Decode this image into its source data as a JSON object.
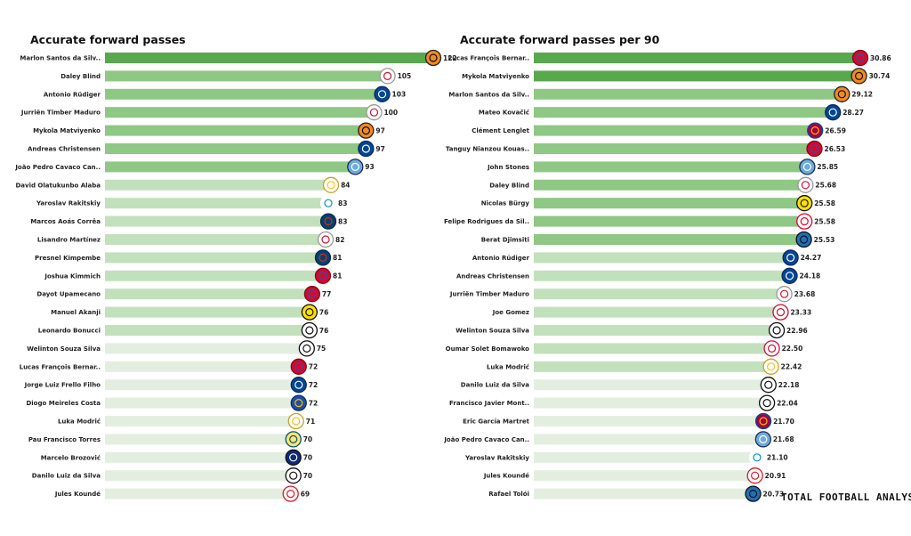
{
  "colors": {
    "bar_dark": "#58a84e",
    "bar_mid": "#8fc784",
    "bar_light": "#c3e0bc",
    "bar_pale": "#e3eee0",
    "badge_default": "#1f4fa0"
  },
  "brand": {
    "text": "TOTAL FOOTBALL ANALYSIS"
  },
  "chart_data": [
    {
      "type": "bar",
      "orientation": "horizontal",
      "title": "Accurate forward passes",
      "xlim": [
        0,
        122
      ],
      "decimals": 0,
      "categories": [
        "Marlon Santos da Silv..",
        "Daley Blind",
        "Antonio Rüdiger",
        "Jurriën Timber Maduro",
        "Mykola Matviyenko",
        "Andreas Christensen",
        "João Pedro Cavaco Can..",
        "David Olatukunbo Alaba",
        "Yaroslav Rakitskiy",
        "Marcos  Aoás Corrêa",
        "Lisandro Martínez",
        "Presnel Kimpembe",
        "Joshua Kimmich",
        "Dayot Upamecano",
        "Manuel Akanji",
        "Leonardo Bonucci",
        "Welinton Souza Silva",
        "Lucas François Bernar..",
        "Jorge Luiz Frello Filho",
        "Diogo Meireles Costa",
        "Luka Modrić",
        "Pau Francisco Torres",
        "Marcelo Brozović",
        "Danilo Luiz da Silva",
        "Jules Koundé"
      ],
      "values": [
        122,
        105,
        103,
        100,
        97,
        97,
        93,
        84,
        83,
        83,
        82,
        81,
        81,
        77,
        76,
        76,
        75,
        72,
        72,
        72,
        71,
        70,
        70,
        70,
        69
      ],
      "badges": [
        "shakhtar-badge-icon",
        "ajax-badge-icon",
        "chelsea-badge-icon",
        "ajax-badge-icon",
        "shakhtar-badge-icon",
        "chelsea-badge-icon",
        "man-city-badge-icon",
        "real-madrid-badge-icon",
        "zenit-badge-icon",
        "psg-badge-icon",
        "ajax-badge-icon",
        "psg-badge-icon",
        "bayern-badge-icon",
        "bayern-badge-icon",
        "dortmund-badge-icon",
        "juventus-badge-icon",
        "besiktas-badge-icon",
        "bayern-badge-icon",
        "chelsea-badge-icon",
        "porto-badge-icon",
        "real-madrid-badge-icon",
        "villarreal-badge-icon",
        "inter-badge-icon",
        "juventus-badge-icon",
        "sevilla-badge-icon"
      ],
      "shade_bands": [
        "bar_dark",
        "bar_mid",
        "bar_mid",
        "bar_mid",
        "bar_mid",
        "bar_mid",
        "bar_mid",
        "bar_light",
        "bar_light",
        "bar_light",
        "bar_light",
        "bar_light",
        "bar_light",
        "bar_light",
        "bar_light",
        "bar_light",
        "bar_pale",
        "bar_pale",
        "bar_pale",
        "bar_pale",
        "bar_pale",
        "bar_pale",
        "bar_pale",
        "bar_pale",
        "bar_pale"
      ]
    },
    {
      "type": "bar",
      "orientation": "horizontal",
      "title": "Accurate forward passes per 90",
      "xlim": [
        0,
        30.86
      ],
      "decimals": 2,
      "categories": [
        "Lucas François Bernar..",
        "Mykola Matviyenko",
        "Marlon Santos da Silv..",
        "Mateo Kovačić",
        "Clément Lenglet",
        "Tanguy Nianzou Kouas..",
        "John Stones",
        "Daley Blind",
        "Nicolas Bürgy",
        "Felipe Rodrigues da Sil..",
        "Berat  Djimsiti",
        "Antonio Rüdiger",
        "Andreas Christensen",
        "Jurriën Timber Maduro",
        "Joe Gomez",
        "Welinton Souza Silva",
        "Oumar Solet Bomawoko",
        "Luka Modrić",
        "Danilo Luiz da Silva",
        "Francisco Javier Mont..",
        "Eric García Martret",
        "João Pedro Cavaco Can..",
        "Yaroslav Rakitskiy",
        "Jules Koundé",
        "Rafael Tolói"
      ],
      "values": [
        30.86,
        30.74,
        29.12,
        28.27,
        26.59,
        26.53,
        25.85,
        25.68,
        25.58,
        25.58,
        25.53,
        24.27,
        24.18,
        23.68,
        23.33,
        22.96,
        22.5,
        22.42,
        22.18,
        22.04,
        21.7,
        21.68,
        21.1,
        20.91,
        20.73
      ],
      "badges": [
        "bayern-badge-icon",
        "shakhtar-badge-icon",
        "shakhtar-badge-icon",
        "chelsea-badge-icon",
        "barcelona-badge-icon",
        "bayern-badge-icon",
        "man-city-badge-icon",
        "ajax-badge-icon",
        "young-boys-badge-icon",
        "benfica-badge-icon",
        "atalanta-badge-icon",
        "chelsea-badge-icon",
        "chelsea-badge-icon",
        "ajax-badge-icon",
        "liverpool-badge-icon",
        "besiktas-badge-icon",
        "salzburg-badge-icon",
        "real-madrid-badge-icon",
        "juventus-badge-icon",
        "besiktas-badge-icon",
        "barcelona-badge-icon",
        "man-city-badge-icon",
        "zenit-badge-icon",
        "sevilla-badge-icon",
        "atalanta-badge-icon"
      ],
      "shade_bands": [
        "bar_dark",
        "bar_dark",
        "bar_mid",
        "bar_mid",
        "bar_mid",
        "bar_mid",
        "bar_mid",
        "bar_mid",
        "bar_mid",
        "bar_mid",
        "bar_mid",
        "bar_light",
        "bar_light",
        "bar_light",
        "bar_light",
        "bar_light",
        "bar_light",
        "bar_light",
        "bar_pale",
        "bar_pale",
        "bar_pale",
        "bar_pale",
        "bar_pale",
        "bar_pale",
        "bar_pale"
      ]
    }
  ]
}
